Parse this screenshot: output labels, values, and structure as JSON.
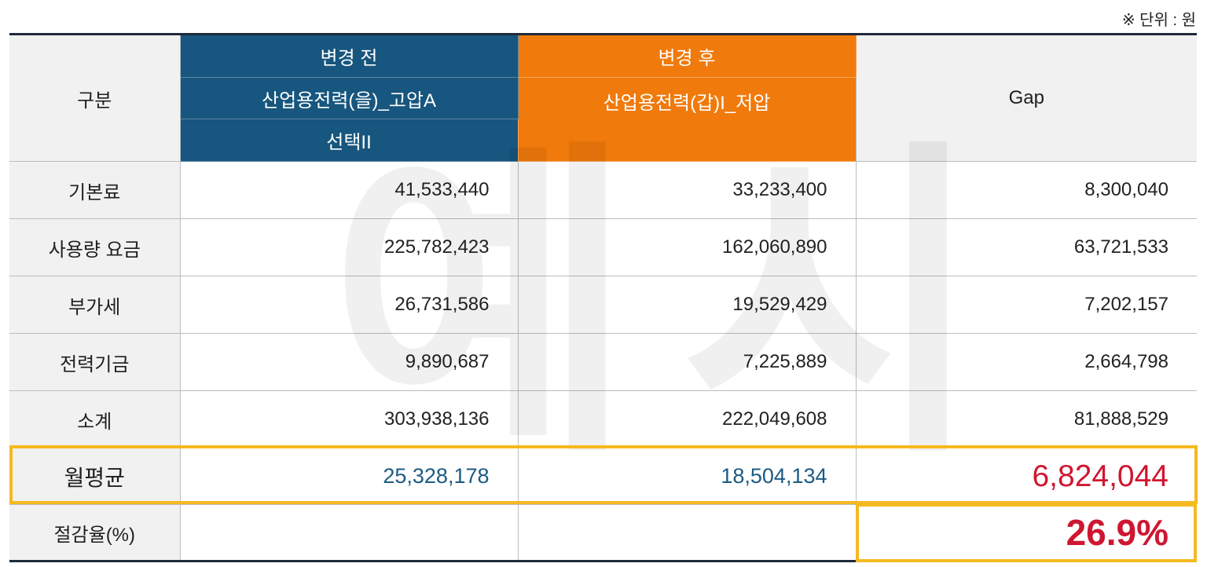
{
  "unit_note": "※ 단위 : 원",
  "watermark": "예시",
  "header": {
    "category": "구분",
    "before_label": "변경 전",
    "before_plan_line1": "산업용전력(을)_고압A",
    "before_plan_line2": "선택II",
    "after_label": "변경 후",
    "after_plan": "산업용전력(갑)I_저압",
    "gap": "Gap"
  },
  "rows": [
    {
      "label": "기본료",
      "before": "41,533,440",
      "after": "33,233,400",
      "gap": "8,300,040"
    },
    {
      "label": "사용량 요금",
      "before": "225,782,423",
      "after": "162,060,890",
      "gap": "63,721,533"
    },
    {
      "label": "부가세",
      "before": "26,731,586",
      "after": "19,529,429",
      "gap": "7,202,157"
    },
    {
      "label": "전력기금",
      "before": "9,890,687",
      "after": "7,225,889",
      "gap": "2,664,798"
    },
    {
      "label": "소계",
      "before": "303,938,136",
      "after": "222,049,608",
      "gap": "81,888,529"
    }
  ],
  "monthly_avg": {
    "label": "월평균",
    "before": "25,328,178",
    "after": "18,504,134",
    "gap": "6,824,044"
  },
  "savings": {
    "label": "절감율(%)",
    "before": "",
    "after": "",
    "gap": "26.9%"
  },
  "colors": {
    "before_header": "#17567e",
    "after_header": "#f07a0c",
    "highlight_border": "#f5b921",
    "highlight_red": "#cf1631",
    "highlight_blue": "#1c5a84"
  }
}
